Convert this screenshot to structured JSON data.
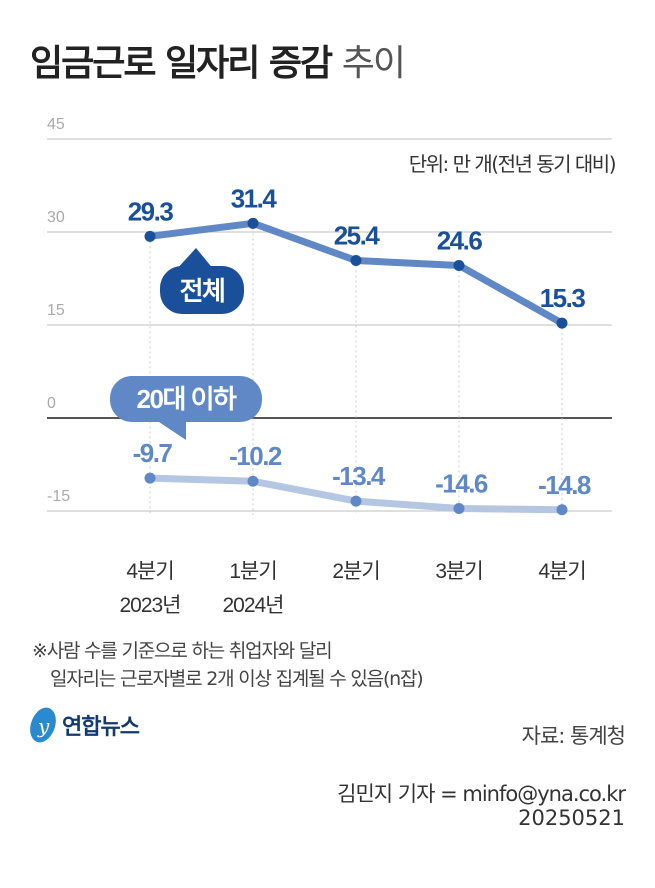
{
  "title": {
    "main": "임금근로 일자리 증감",
    "sub": "추이"
  },
  "unit": "단위: 만 개(전년 동기 대비)",
  "chart_data": {
    "type": "line",
    "categories": [
      "4분기\n2023년",
      "1분기\n2024년",
      "2분기",
      "3분기",
      "4분기"
    ],
    "x_labels": [
      [
        "4분기",
        "2023년"
      ],
      [
        "1분기",
        "2024년"
      ],
      [
        "2분기",
        ""
      ],
      [
        "3분기",
        ""
      ],
      [
        "4분기",
        ""
      ]
    ],
    "ylim": [
      -15,
      45
    ],
    "yticks": [
      "45",
      "30",
      "15",
      "0",
      "-15"
    ],
    "grid": true,
    "series": [
      {
        "name": "전체",
        "values": [
          29.3,
          31.4,
          25.4,
          24.6,
          15.3
        ],
        "labels": [
          "29.3",
          "31.4",
          "25.4",
          "24.6",
          "15.3"
        ],
        "color": "#6088c6",
        "marker_color": "#1a4f99",
        "label_color": "#1a4f99"
      },
      {
        "name": "20대 이하",
        "values": [
          -9.7,
          -10.2,
          -13.4,
          -14.6,
          -14.8
        ],
        "labels": [
          "-9.7",
          "-10.2",
          "-13.4",
          "-14.6",
          "-14.8"
        ],
        "color": "#b4c6e2",
        "marker_color": "#6088c6",
        "label_color": "#6088c6"
      }
    ]
  },
  "notes": [
    "※사람 수를 기준으로 하는 취업자와 달리",
    "일자리는 근로자별로 2개 이상 집계될 수 있음(n잡)"
  ],
  "logo": "연합뉴스",
  "source": "자료: 통계청",
  "credit": "김민지 기자 = minfo@yna.co.kr",
  "date": "20250521"
}
